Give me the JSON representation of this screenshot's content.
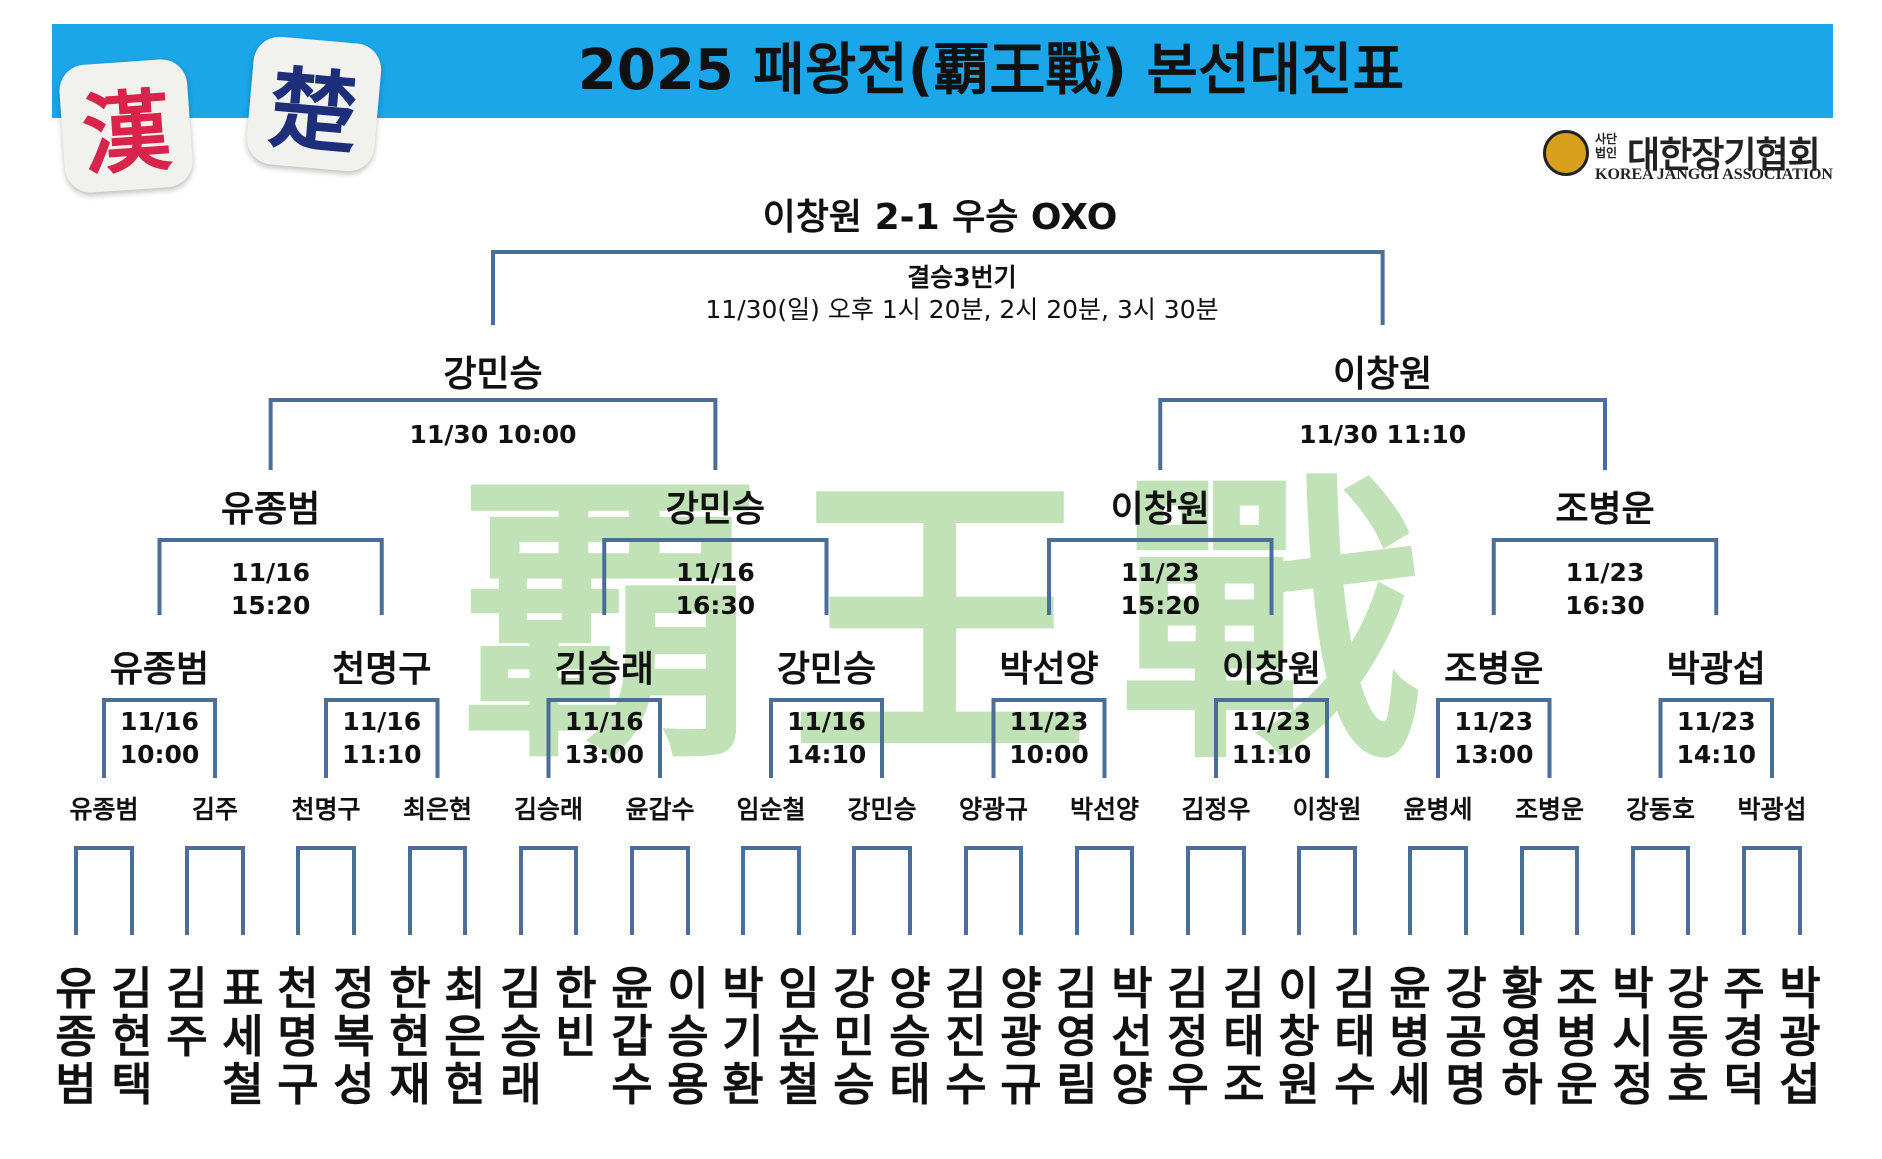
{
  "header": {
    "title": "2025 패왕전(覇王戰) 본선대진표",
    "han_piece": "漢",
    "cho_piece": "楚",
    "association": {
      "small": "사단법인",
      "name": "대한장기협회",
      "english": "KOREA JANGGI ASSOCIATION"
    },
    "watermark": "覇王戰"
  },
  "colors": {
    "banner": "#1aa6e8",
    "line": "#4a6e98",
    "watermark": "#a9d89a",
    "han": "#d8244a",
    "cho": "#1d2e7a"
  },
  "final": {
    "result": "이창원 2-1 우승 OXO",
    "label": "결승3번기",
    "schedule": "11/30(일)  오후 1시 20분, 2시 20분, 3시 30분"
  },
  "semifinals": [
    {
      "winner": "강민승",
      "schedule": "11/30 10:00"
    },
    {
      "winner": "이창원",
      "schedule": "11/30 11:10"
    }
  ],
  "quarterfinals": [
    {
      "winner": "유종범",
      "schedule": "11/16\n15:20"
    },
    {
      "winner": "강민승",
      "schedule": "11/16\n16:30"
    },
    {
      "winner": "이창원",
      "schedule": "11/23\n15:20"
    },
    {
      "winner": "조병운",
      "schedule": "11/23\n16:30"
    }
  ],
  "round16": [
    {
      "winner": "유종범",
      "schedule": "11/16\n10:00"
    },
    {
      "winner": "천명구",
      "schedule": "11/16\n11:10"
    },
    {
      "winner": "김승래",
      "schedule": "11/16\n13:00"
    },
    {
      "winner": "강민승",
      "schedule": "11/16\n14:10"
    },
    {
      "winner": "박선양",
      "schedule": "11/23\n10:00"
    },
    {
      "winner": "이창원",
      "schedule": "11/23\n11:10"
    },
    {
      "winner": "조병운",
      "schedule": "11/23\n13:00"
    },
    {
      "winner": "박광섭",
      "schedule": "11/23\n14:10"
    }
  ],
  "round32_winners": [
    "유종범",
    "김주",
    "천명구",
    "최은현",
    "김승래",
    "윤갑수",
    "임순철",
    "강민승",
    "양광규",
    "박선양",
    "김정우",
    "이창원",
    "윤병세",
    "조병운",
    "강동호",
    "박광섭"
  ],
  "players": [
    "유종범",
    "김현택",
    "김주",
    "표세철",
    "천명구",
    "정복성",
    "한현재",
    "최은현",
    "김승래",
    "한빈",
    "윤갑수",
    "이승용",
    "박기환",
    "임순철",
    "강민승",
    "양승태",
    "김진수",
    "양광규",
    "김영림",
    "박선양",
    "김정우",
    "김태조",
    "이창원",
    "김태수",
    "윤병세",
    "강공명",
    "황영하",
    "조병운",
    "박시정",
    "강동호",
    "주경덕",
    "박광섭"
  ]
}
